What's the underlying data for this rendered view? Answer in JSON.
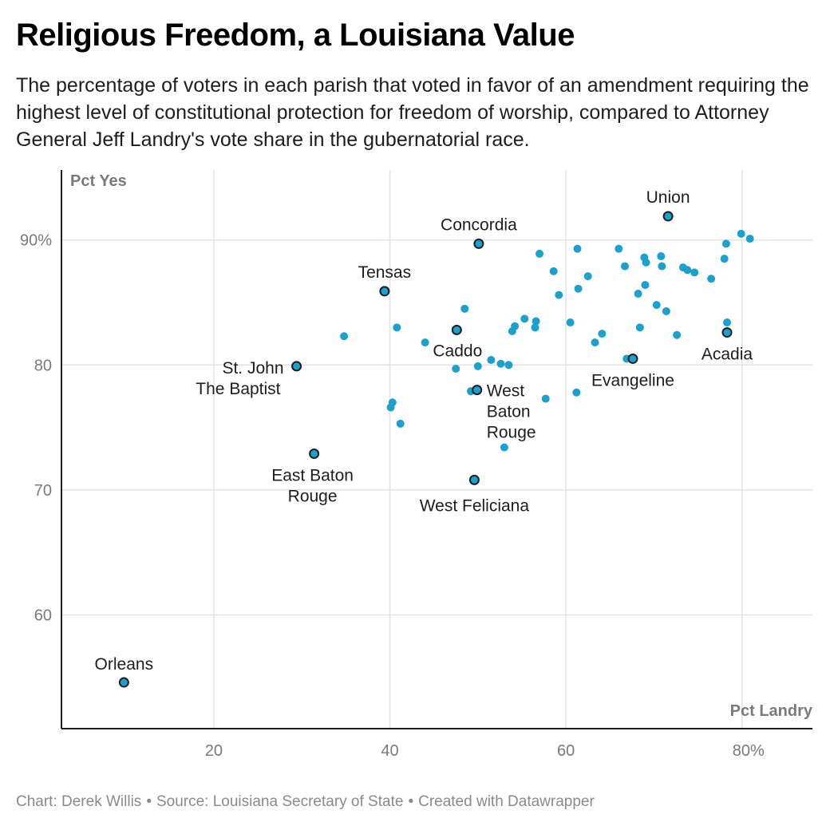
{
  "title": "Religious Freedom, a Louisiana Value",
  "subtitle": "The percentage of voters in each parish that voted in favor of an amendment requiring the highest level of constitutional protection for freedom of worship, compared to Attorney General Jeff Landry's vote share in the gubernatorial race.",
  "footer": {
    "chart_by": "Chart: Derek Willis",
    "source": "Source: Louisiana Secretary of State",
    "created": "Created with Datawrapper",
    "separator": "•"
  },
  "colors": {
    "point": "#1aa1cf",
    "point_outline": "#1d1d1d",
    "grid": "#e3e3e3",
    "axis": "#1d1d1d",
    "axis_title": "#7a7a7a",
    "tick": "#7a7a7a"
  },
  "chart_data": {
    "type": "scatter",
    "xlabel": "Pct Landry",
    "ylabel": "Pct Yes",
    "xlim": [
      2.7,
      88
    ],
    "ylim": [
      50.9,
      95.6
    ],
    "xticks": [
      20,
      40,
      60,
      80
    ],
    "xtick_labels": [
      "20",
      "40",
      "60",
      "80%"
    ],
    "yticks": [
      60,
      70,
      80,
      90
    ],
    "ytick_labels": [
      "60",
      "70",
      "80",
      "90%"
    ],
    "grid": true,
    "labeled_points": [
      {
        "name": "Orleans",
        "x": 9.8,
        "y": 54.6
      },
      {
        "name": "St. John The Baptist",
        "x": 29.4,
        "y": 79.9
      },
      {
        "name": "East Baton Rouge",
        "x": 31.4,
        "y": 72.9
      },
      {
        "name": "Tensas",
        "x": 39.4,
        "y": 85.9
      },
      {
        "name": "Caddo",
        "x": 47.6,
        "y": 82.8
      },
      {
        "name": "Concordia",
        "x": 50.1,
        "y": 89.7
      },
      {
        "name": "West Baton Rouge",
        "x": 49.9,
        "y": 78.0
      },
      {
        "name": "West Feliciana",
        "x": 49.6,
        "y": 70.8
      },
      {
        "name": "Evangeline",
        "x": 67.6,
        "y": 80.5
      },
      {
        "name": "Union",
        "x": 71.6,
        "y": 91.9
      },
      {
        "name": "Acadia",
        "x": 78.3,
        "y": 82.6
      }
    ],
    "points": [
      {
        "x": 34.8,
        "y": 82.3
      },
      {
        "x": 40.8,
        "y": 83.0
      },
      {
        "x": 44.0,
        "y": 81.8
      },
      {
        "x": 48.5,
        "y": 84.5
      },
      {
        "x": 40.3,
        "y": 77.0
      },
      {
        "x": 40.1,
        "y": 76.6
      },
      {
        "x": 41.2,
        "y": 75.3
      },
      {
        "x": 47.5,
        "y": 79.7
      },
      {
        "x": 49.2,
        "y": 77.9
      },
      {
        "x": 50.0,
        "y": 79.9
      },
      {
        "x": 51.5,
        "y": 80.4
      },
      {
        "x": 52.6,
        "y": 80.1
      },
      {
        "x": 53.5,
        "y": 80.0
      },
      {
        "x": 53.0,
        "y": 73.4
      },
      {
        "x": 53.9,
        "y": 82.7
      },
      {
        "x": 54.2,
        "y": 83.1
      },
      {
        "x": 55.3,
        "y": 83.7
      },
      {
        "x": 56.5,
        "y": 83.0
      },
      {
        "x": 56.6,
        "y": 83.5
      },
      {
        "x": 57.0,
        "y": 88.9
      },
      {
        "x": 57.7,
        "y": 77.3
      },
      {
        "x": 58.6,
        "y": 87.5
      },
      {
        "x": 59.2,
        "y": 85.6
      },
      {
        "x": 60.5,
        "y": 83.4
      },
      {
        "x": 61.3,
        "y": 89.3
      },
      {
        "x": 61.4,
        "y": 86.1
      },
      {
        "x": 61.2,
        "y": 77.8
      },
      {
        "x": 62.5,
        "y": 87.1
      },
      {
        "x": 63.3,
        "y": 81.8
      },
      {
        "x": 64.1,
        "y": 82.5
      },
      {
        "x": 66.0,
        "y": 89.3
      },
      {
        "x": 66.7,
        "y": 87.9
      },
      {
        "x": 66.9,
        "y": 80.5
      },
      {
        "x": 68.2,
        "y": 85.7
      },
      {
        "x": 68.4,
        "y": 83.0
      },
      {
        "x": 68.9,
        "y": 88.6
      },
      {
        "x": 69.1,
        "y": 88.2
      },
      {
        "x": 69.0,
        "y": 86.4
      },
      {
        "x": 70.3,
        "y": 84.8
      },
      {
        "x": 70.8,
        "y": 88.7
      },
      {
        "x": 70.9,
        "y": 87.9
      },
      {
        "x": 71.4,
        "y": 84.3
      },
      {
        "x": 72.6,
        "y": 82.4
      },
      {
        "x": 73.3,
        "y": 87.8
      },
      {
        "x": 73.8,
        "y": 87.6
      },
      {
        "x": 74.6,
        "y": 87.4
      },
      {
        "x": 76.5,
        "y": 86.9
      },
      {
        "x": 78.0,
        "y": 88.5
      },
      {
        "x": 78.2,
        "y": 89.7
      },
      {
        "x": 78.3,
        "y": 83.4
      },
      {
        "x": 79.9,
        "y": 90.5
      },
      {
        "x": 80.9,
        "y": 90.1
      }
    ]
  }
}
